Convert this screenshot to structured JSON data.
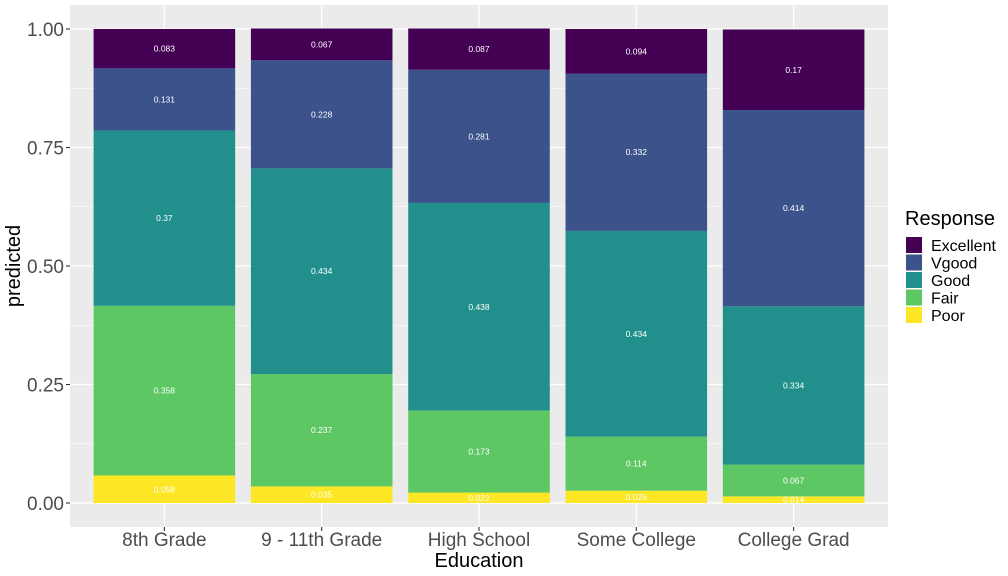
{
  "chart_data": {
    "type": "bar",
    "stacked": true,
    "xlabel": "Education",
    "ylabel": "predicted",
    "ylim": [
      0,
      1
    ],
    "yticks": [
      "0.00",
      "0.25",
      "0.50",
      "0.75",
      "1.00"
    ],
    "ytick_values": [
      0,
      0.25,
      0.5,
      0.75,
      1
    ],
    "grid": true,
    "legend_title": "Response",
    "legend_position": "right",
    "categories": [
      "8th Grade",
      "9 - 11th Grade",
      "High School",
      "Some College",
      "College Grad"
    ],
    "series": [
      {
        "name": "Poor",
        "color": "#FDE725",
        "values": [
          0.058,
          0.035,
          0.022,
          0.026,
          0.014
        ],
        "labels": [
          "0.058",
          "0.035",
          "0.022",
          "0.026",
          "0.014"
        ]
      },
      {
        "name": "Fair",
        "color": "#5DC863",
        "values": [
          0.358,
          0.237,
          0.173,
          0.114,
          0.067
        ],
        "labels": [
          "0.358",
          "0.237",
          "0.173",
          "0.114",
          "0.067"
        ]
      },
      {
        "name": "Good",
        "color": "#21908C",
        "values": [
          0.37,
          0.434,
          0.438,
          0.434,
          0.334
        ],
        "labels": [
          "0.37",
          "0.434",
          "0.438",
          "0.434",
          "0.334"
        ]
      },
      {
        "name": "Vgood",
        "color": "#3B528B",
        "values": [
          0.131,
          0.228,
          0.281,
          0.332,
          0.414
        ],
        "labels": [
          "0.131",
          "0.228",
          "0.281",
          "0.332",
          "0.414"
        ]
      },
      {
        "name": "Excellent",
        "color": "#440154",
        "values": [
          0.083,
          0.067,
          0.087,
          0.094,
          0.17
        ],
        "labels": [
          "0.083",
          "0.067",
          "0.087",
          "0.094",
          "0.17"
        ]
      }
    ],
    "legend_order": [
      "Excellent",
      "Vgood",
      "Good",
      "Fair",
      "Poor"
    ]
  }
}
